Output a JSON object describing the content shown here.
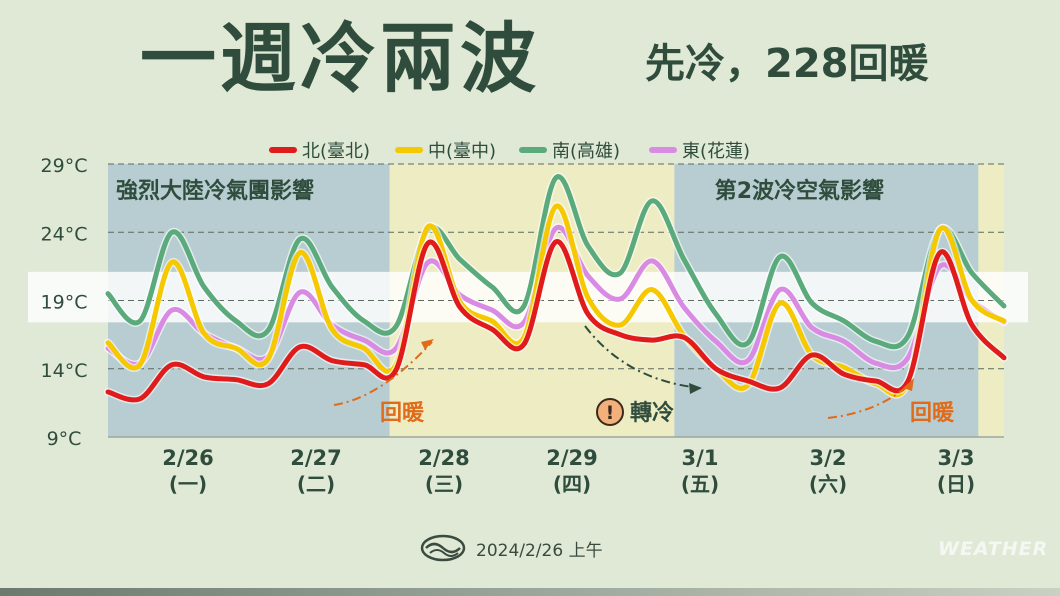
{
  "title": "一週冷兩波",
  "subtitle": "先冷，228回暖",
  "footer": {
    "date_text": "2024/2/26 上午",
    "watermark": "WEATHER",
    "logo_icon": "cwa-logo-icon"
  },
  "chart_data": {
    "type": "line",
    "title": "一週冷兩波",
    "subtitle": "先冷，228回暖",
    "ylim": [
      9,
      29
    ],
    "yticks": [
      9,
      14,
      19,
      24,
      29
    ],
    "ytick_labels": [
      "9°C",
      "14°C",
      "19°C",
      "24°C",
      "29°C"
    ],
    "x_range": [
      0,
      28
    ],
    "categories": [
      {
        "date": "2/26",
        "weekday": "(一)"
      },
      {
        "date": "2/27",
        "weekday": "(二)"
      },
      {
        "date": "2/28",
        "weekday": "(三)"
      },
      {
        "date": "2/29",
        "weekday": "(四)"
      },
      {
        "date": "3/1",
        "weekday": "(五)"
      },
      {
        "date": "3/2",
        "weekday": "(六)"
      },
      {
        "date": "3/3",
        "weekday": "(日)"
      }
    ],
    "legend": {
      "position": "top"
    },
    "grid": true,
    "x": [
      0,
      1,
      2,
      3,
      4,
      5,
      6,
      7,
      8,
      9,
      10,
      11,
      12,
      13,
      14,
      15,
      16,
      17,
      18,
      19,
      20,
      21,
      22,
      23,
      24,
      25,
      26,
      27,
      28
    ],
    "series": [
      {
        "name": "北(臺北)",
        "color": "#e01b1b",
        "values": [
          12.3,
          11.8,
          14.3,
          13.4,
          13.2,
          12.9,
          15.6,
          14.6,
          14.3,
          13.9,
          23.2,
          18.5,
          16.9,
          15.8,
          23.3,
          18.0,
          16.5,
          16.1,
          16.3,
          14.0,
          13.1,
          12.6,
          15.0,
          13.6,
          13.1,
          13.1,
          22.5,
          17.2,
          14.8
        ]
      },
      {
        "name": "中(臺中)",
        "color": "#f5c800",
        "values": [
          15.9,
          14.3,
          21.8,
          16.6,
          15.5,
          14.7,
          22.5,
          16.9,
          15.5,
          14.3,
          24.4,
          18.9,
          17.5,
          16.3,
          25.9,
          19.2,
          17.2,
          19.8,
          16.4,
          14.0,
          12.8,
          18.8,
          15.0,
          14.1,
          12.9,
          13.0,
          24.2,
          19.0,
          17.5
        ]
      },
      {
        "name": "南(高雄)",
        "color": "#5aaa7c",
        "values": [
          19.5,
          17.5,
          24.0,
          20.0,
          17.5,
          16.8,
          23.5,
          20.0,
          17.5,
          17.1,
          24.2,
          22.0,
          20.0,
          18.6,
          28.0,
          23.0,
          21.0,
          26.3,
          22.0,
          18.0,
          15.9,
          22.2,
          18.8,
          17.5,
          16.0,
          16.4,
          24.2,
          21.0,
          18.6
        ]
      },
      {
        "name": "東(花蓮)",
        "color": "#d98be3",
        "values": [
          15.5,
          14.4,
          18.3,
          16.6,
          15.5,
          14.9,
          19.6,
          17.2,
          16.1,
          15.5,
          21.8,
          19.4,
          18.3,
          17.4,
          24.3,
          20.8,
          19.1,
          21.9,
          18.5,
          16.0,
          14.6,
          19.8,
          17.0,
          16.0,
          14.4,
          14.8,
          21.5,
          19.0,
          17.4
        ]
      }
    ],
    "annotations": [
      {
        "text": "強烈大陸冷氣團影響",
        "kind": "period-label"
      },
      {
        "text": "第2波冷空氣影響",
        "kind": "period-label"
      },
      {
        "text": "回暖",
        "kind": "trend",
        "color": "#e06b1a"
      },
      {
        "text": "轉冷",
        "kind": "trend",
        "icon": "alert-icon"
      },
      {
        "text": "回暖",
        "kind": "trend",
        "color": "#e06b1a"
      }
    ],
    "colors": {
      "cold_band": "#a9c3cf",
      "warm_band": "#f0ecc0",
      "comfort_band": "#ffffff",
      "orange": "#e06b1a",
      "dark_text": "#2f4c3c"
    }
  }
}
